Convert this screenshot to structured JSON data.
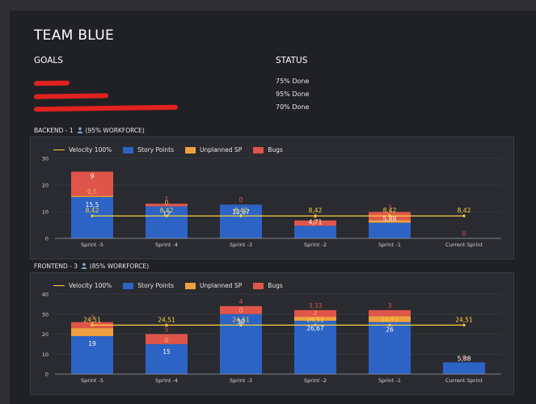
{
  "title": "TEAM BLUE",
  "goals_header": "GOALS",
  "status_header": "STATUS",
  "goals": [
    {
      "text": "",
      "status": "75% Done"
    },
    {
      "text": "",
      "status": "95% Done"
    },
    {
      "text": "",
      "status": "70% Done"
    }
  ],
  "legend": {
    "velocity": "Velocity 100%",
    "story": "Story Points",
    "unplanned": "Unplanned SP",
    "bugs": "Bugs"
  },
  "colors": {
    "story": "#2c63c4",
    "unplanned": "#f0a040",
    "bugs": "#e0554a",
    "velocity": "#fbd23e",
    "grid": "#3c3d44",
    "axis_text": "#d6d6d6"
  },
  "backend": {
    "label": "BACKEND - 1",
    "label_suffix": "(95% WORKFORCE)"
  },
  "frontend": {
    "label": "FRONTEND - 3",
    "label_suffix": "(85% WORKFORCE)"
  },
  "chart_data": [
    {
      "type": "bar",
      "stacked": true,
      "categories": [
        "Sprint -5",
        "Sprint -4",
        "Sprint -3",
        "Sprint -2",
        "Sprint -1",
        "Current Sprint"
      ],
      "series": [
        {
          "name": "Story Points",
          "values": [
            15.5,
            12,
            12.67,
            4.71,
            5.88,
            0
          ],
          "labels": [
            "15,5",
            "12",
            "12,67",
            "4,71",
            "5,88",
            ""
          ]
        },
        {
          "name": "Unplanned SP",
          "values": [
            0.5,
            0,
            0,
            0,
            1,
            0
          ],
          "labels": [
            "0,5",
            "0",
            "",
            "0",
            "1",
            ""
          ]
        },
        {
          "name": "Bugs",
          "values": [
            9,
            1,
            0,
            2,
            3,
            0
          ],
          "labels": [
            "9",
            "1",
            "0",
            "2",
            "3",
            "0"
          ]
        },
        {
          "name": "Velocity 100%",
          "type": "line",
          "values": [
            8.42,
            8.42,
            8.42,
            8.42,
            8.42,
            8.42
          ],
          "labels": [
            "8,42",
            "8,42",
            "8,42",
            "8,42",
            "8,42",
            "8,42"
          ]
        }
      ],
      "yticks": [
        0,
        10,
        20,
        30
      ],
      "ylim": [
        0,
        30
      ]
    },
    {
      "type": "bar",
      "stacked": true,
      "categories": [
        "Sprint -5",
        "Sprint -4",
        "Sprint -3",
        "Sprint -2",
        "Sprint -1",
        "Current Sprint"
      ],
      "series": [
        {
          "name": "Story Points",
          "values": [
            19,
            15,
            30,
            26.67,
            26,
            5.88
          ],
          "labels": [
            "19",
            "15",
            "30",
            "26,67",
            "26",
            "5,88"
          ]
        },
        {
          "name": "Unplanned SP",
          "values": [
            4,
            0,
            0,
            2,
            3,
            0
          ],
          "labels": [
            "4",
            "0",
            "0",
            "2",
            "",
            ""
          ]
        },
        {
          "name": "Bugs",
          "values": [
            3,
            5,
            4,
            3.33,
            3,
            0
          ],
          "labels": [
            "3",
            "5",
            "4",
            "3,33",
            "3",
            "0"
          ]
        },
        {
          "name": "Velocity 100%",
          "type": "line",
          "values": [
            24.51,
            24.51,
            24.51,
            24.51,
            24.51,
            24.51
          ],
          "labels": [
            "24,51",
            "24,51",
            "24,51",
            "24,51",
            "24,51",
            "24,51"
          ]
        }
      ],
      "yticks": [
        0,
        10,
        20,
        30,
        40
      ],
      "ylim": [
        0,
        40
      ]
    }
  ]
}
